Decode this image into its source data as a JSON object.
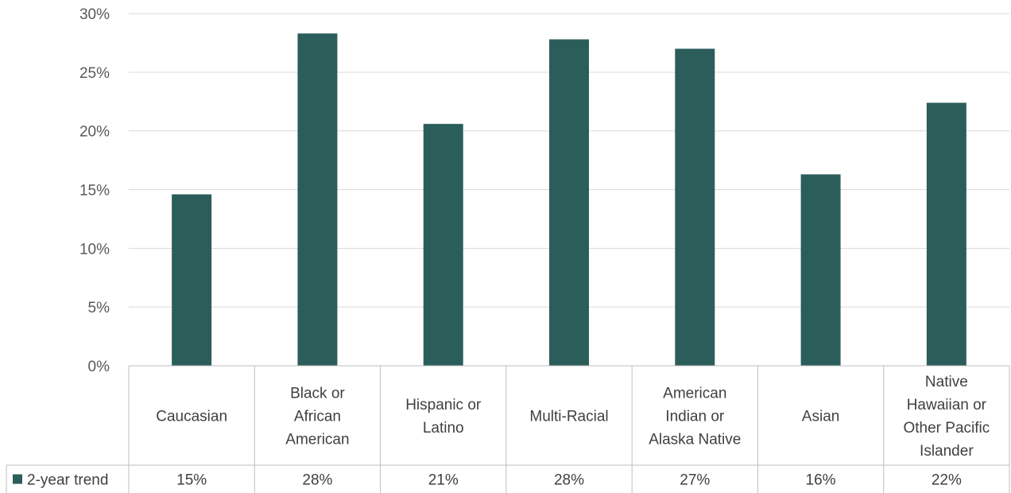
{
  "chart_data": {
    "type": "bar",
    "categories": [
      [
        "Caucasian"
      ],
      [
        "Black or",
        "African",
        "American"
      ],
      [
        "Hispanic or",
        "Latino"
      ],
      [
        "Multi-Racial"
      ],
      [
        "American",
        "Indian or",
        "Alaska Native"
      ],
      [
        "Asian"
      ],
      [
        "Native",
        "Hawaiian or",
        "Other Pacific",
        "Islander"
      ]
    ],
    "series": [
      {
        "name": "2-year trend",
        "values": [
          14.6,
          28.3,
          20.6,
          27.8,
          27.0,
          16.3,
          22.4
        ],
        "labels": [
          "15%",
          "28%",
          "21%",
          "28%",
          "27%",
          "16%",
          "22%"
        ],
        "color": "#2b5e5b"
      }
    ],
    "y_ticks": [
      "0%",
      "5%",
      "10%",
      "15%",
      "20%",
      "25%",
      "30%"
    ],
    "ylim": [
      0,
      30
    ],
    "grid": true,
    "data_table": true,
    "gridline_color": "#d9d9d9",
    "table_line_color": "#bfbfbf"
  }
}
